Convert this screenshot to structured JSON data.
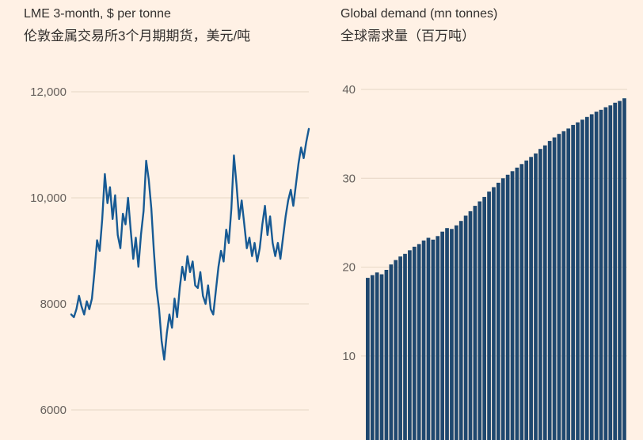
{
  "page": {
    "background": "#fff1e5",
    "text_color": "#33302e",
    "tick_text_color": "#66605c",
    "grid_color": "#e6d6c5"
  },
  "chart_data": [
    {
      "type": "line",
      "title": "LME 3-month, $ per tonne",
      "subtitle_zh": "伦敦金属交易所3个月期期货，美元/吨",
      "xlabel": "",
      "ylabel": "",
      "ylim": [
        6000,
        12000
      ],
      "grid": true,
      "line_color": "#175a94",
      "grid_color": "#e6d6c5",
      "tick_color": "#66605c",
      "yticks": [
        {
          "value": 12000,
          "label": "12,000"
        },
        {
          "value": 10000,
          "label": "10,000"
        },
        {
          "value": 8000,
          "label": "8000"
        },
        {
          "value": 6000,
          "label": "6000"
        }
      ],
      "values": [
        7800,
        7750,
        7900,
        8150,
        7950,
        7800,
        8050,
        7900,
        8100,
        8600,
        9200,
        9000,
        9600,
        10450,
        9900,
        10200,
        9600,
        10050,
        9300,
        9050,
        9700,
        9500,
        10000,
        9400,
        8850,
        9250,
        8700,
        9300,
        9750,
        10700,
        10350,
        9800,
        9000,
        8300,
        7900,
        7300,
        6950,
        7450,
        7800,
        7550,
        8100,
        7750,
        8300,
        8700,
        8450,
        8900,
        8600,
        8800,
        8350,
        8300,
        8600,
        8150,
        8000,
        8350,
        7900,
        7800,
        8250,
        8700,
        9000,
        8800,
        9400,
        9150,
        9800,
        10800,
        10250,
        9600,
        9950,
        9500,
        9050,
        9250,
        8900,
        9150,
        8800,
        9050,
        9500,
        9850,
        9300,
        9650,
        9150,
        8900,
        9150,
        8850,
        9250,
        9650,
        9950,
        10150,
        9850,
        10250,
        10650,
        10950,
        10750,
        11050,
        11300
      ]
    },
    {
      "type": "bar",
      "title": "Global demand (mn tonnes)",
      "subtitle_zh": "全球需求量（百万吨）",
      "xlabel": "",
      "ylabel": "",
      "ylim": [
        0,
        40
      ],
      "grid": true,
      "bar_color": "#1f486f",
      "grid_color": "#e6d6c5",
      "tick_color": "#66605c",
      "yticks": [
        {
          "value": 40,
          "label": "40"
        },
        {
          "value": 30,
          "label": "30"
        },
        {
          "value": 20,
          "label": "20"
        },
        {
          "value": 10,
          "label": "10"
        }
      ],
      "values": [
        18.8,
        19.1,
        19.4,
        19.2,
        19.7,
        20.3,
        20.8,
        21.2,
        21.5,
        21.9,
        22.3,
        22.6,
        23.0,
        23.3,
        23.1,
        23.5,
        24.0,
        24.4,
        24.3,
        24.7,
        25.2,
        25.8,
        26.3,
        26.9,
        27.4,
        27.9,
        28.5,
        29.0,
        29.5,
        30.0,
        30.4,
        30.8,
        31.2,
        31.6,
        32.0,
        32.4,
        32.8,
        33.3,
        33.7,
        34.2,
        34.6,
        35.0,
        35.3,
        35.6,
        36.0,
        36.3,
        36.6,
        36.9,
        37.2,
        37.5,
        37.7,
        38.0,
        38.2,
        38.5,
        38.7,
        39.0
      ]
    }
  ]
}
